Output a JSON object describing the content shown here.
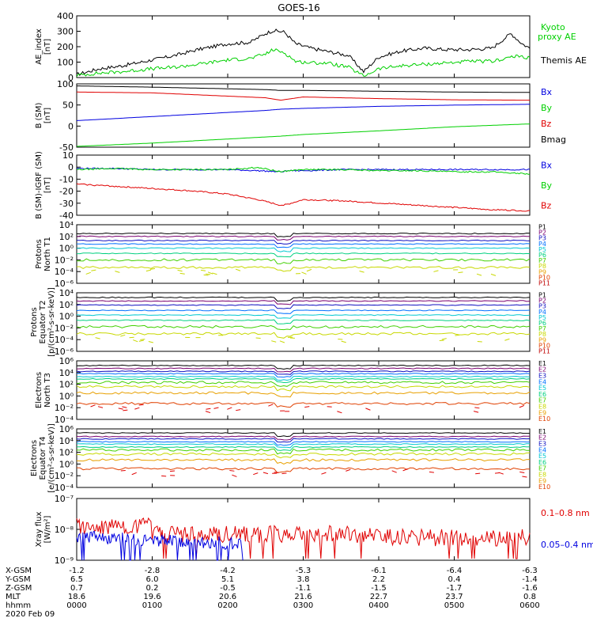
{
  "title": "GOES-16",
  "colors": {
    "black": "#000000",
    "red": "#e00000",
    "green": "#00e000",
    "blue": "#0000e0",
    "ae_green": "#00d000",
    "flux": [
      "#000000",
      "#7a0070",
      "#1010c0",
      "#0070ff",
      "#00c8d0",
      "#00d080",
      "#40d000",
      "#c8d800",
      "#e8a000",
      "#e04000",
      "#c00000"
    ]
  },
  "panels": [
    {
      "id": "ae",
      "ylabel": [
        "AE_index",
        "[nT]"
      ],
      "ticks": [
        "400",
        "300",
        "200",
        "100",
        "0"
      ],
      "legend": [
        {
          "text": "Kyoto",
          "color": "#00d000"
        },
        {
          "text": "proxy AE",
          "color": "#00d000"
        },
        {
          "text": "Themis AE",
          "color": "#000000"
        }
      ]
    },
    {
      "id": "bsm",
      "ylabel": [
        "B (SM)",
        "[nT]"
      ],
      "ticks": [
        "100",
        "50",
        "0",
        "-50"
      ],
      "legend": [
        {
          "text": "Bx",
          "color": "#0000e0"
        },
        {
          "text": "By",
          "color": "#00d000"
        },
        {
          "text": "Bz",
          "color": "#e00000"
        },
        {
          "text": "Bmag",
          "color": "#000000"
        }
      ]
    },
    {
      "id": "bigrf",
      "ylabel": [
        "B (SM)-IGRF (SM)",
        "[nT]"
      ],
      "ticks": [
        "10",
        "0",
        "-10",
        "-20",
        "-30",
        "-40"
      ],
      "legend": [
        {
          "text": "Bx",
          "color": "#0000e0"
        },
        {
          "text": "By",
          "color": "#00d000"
        },
        {
          "text": "Bz",
          "color": "#e00000"
        }
      ]
    },
    {
      "id": "pnt1",
      "ylabel": [
        "Protons",
        "North T1"
      ],
      "ticks": [
        "10⁴",
        "10²",
        "10⁰",
        "10⁻²",
        "10⁻⁴",
        "10⁻⁶"
      ],
      "legend": [
        {
          "text": "P1"
        },
        {
          "text": "P2"
        },
        {
          "text": "P3"
        },
        {
          "text": "P4"
        },
        {
          "text": "P5"
        },
        {
          "text": "P6"
        },
        {
          "text": "P7"
        },
        {
          "text": "P8"
        },
        {
          "text": "P9"
        },
        {
          "text": "P10"
        },
        {
          "text": "P11"
        }
      ]
    },
    {
      "id": "pet2",
      "ylabel": [
        "Protons",
        "Equator T2",
        "[p/(cm²-s-sr-keV)]"
      ],
      "ticks": [
        "10⁴",
        "10²",
        "10⁰",
        "10⁻²",
        "10⁻⁴",
        "10⁻⁶"
      ],
      "legend": [
        {
          "text": "P1"
        },
        {
          "text": "P2"
        },
        {
          "text": "P3"
        },
        {
          "text": "P4"
        },
        {
          "text": "P5"
        },
        {
          "text": "P6"
        },
        {
          "text": "P7"
        },
        {
          "text": "P8"
        },
        {
          "text": "P9"
        },
        {
          "text": "P10"
        },
        {
          "text": "P11"
        }
      ]
    },
    {
      "id": "ent3",
      "ylabel": [
        "Electrons",
        "North T3"
      ],
      "ticks": [
        "10⁶",
        "10⁴",
        "10²",
        "10⁰",
        "10⁻²",
        "10⁻⁴"
      ],
      "legend": [
        {
          "text": "E1"
        },
        {
          "text": "E2"
        },
        {
          "text": "E3"
        },
        {
          "text": "E4"
        },
        {
          "text": "E5"
        },
        {
          "text": "E6"
        },
        {
          "text": "E7"
        },
        {
          "text": "E8"
        },
        {
          "text": "E9"
        },
        {
          "text": "E10"
        }
      ]
    },
    {
      "id": "eet4",
      "ylabel": [
        "Electrons",
        "Equator T4",
        "[e/(cm²-s-sr-keV)]"
      ],
      "ticks": [
        "10⁶",
        "10⁴",
        "10²",
        "10⁰",
        "10⁻²",
        "10⁻⁴"
      ],
      "legend": [
        {
          "text": "E1"
        },
        {
          "text": "E2"
        },
        {
          "text": "E3"
        },
        {
          "text": "E4"
        },
        {
          "text": "E5"
        },
        {
          "text": "E6"
        },
        {
          "text": "E7"
        },
        {
          "text": "E8"
        },
        {
          "text": "E9"
        },
        {
          "text": "E10"
        }
      ]
    },
    {
      "id": "xray",
      "ylabel": [
        "Xray flux",
        "[W/m²]"
      ],
      "ticks": [
        "10⁻⁷",
        "10⁻⁸",
        "10⁻⁹"
      ],
      "legend": [
        {
          "text": "0.1–0.8 nm",
          "color": "#e00000"
        },
        {
          "text": "0.05–0.4 nm",
          "color": "#0000e0"
        }
      ]
    }
  ],
  "footer": {
    "rows": [
      {
        "label": "X-GSM",
        "values": [
          "-1.2",
          "-2.8",
          "-4.2",
          "-5.3",
          "-6.1",
          "-6.4",
          "-6.3"
        ]
      },
      {
        "label": "Y-GSM",
        "values": [
          "6.5",
          "6.0",
          "5.1",
          "3.8",
          "2.2",
          "0.4",
          "-1.4"
        ]
      },
      {
        "label": "Z-GSM",
        "values": [
          "0.7",
          "0.2",
          "-0.5",
          "-1.1",
          "-1.5",
          "-1.7",
          "-1.6"
        ]
      },
      {
        "label": "MLT",
        "values": [
          "18.6",
          "19.6",
          "20.6",
          "21.6",
          "22.7",
          "23.7",
          "0.8"
        ]
      },
      {
        "label": "hhmm",
        "values": [
          "0000",
          "0100",
          "0200",
          "0300",
          "0400",
          "0500",
          "0600"
        ]
      }
    ],
    "date": "2020 Feb 09"
  },
  "chart_data": [
    {
      "type": "line",
      "panel": "ae",
      "ylim": [
        0,
        420
      ],
      "x_hours": [
        0,
        0.3,
        0.6,
        1.0,
        1.3,
        1.6,
        2.0,
        2.3,
        2.5,
        2.6,
        2.75,
        2.9,
        3.1,
        3.3,
        3.6,
        3.8,
        4.0,
        4.3,
        4.6,
        4.9,
        5.2,
        5.5,
        5.75,
        5.9,
        6.0
      ],
      "series": [
        {
          "name": "Themis AE",
          "values": [
            20,
            60,
            80,
            120,
            150,
            190,
            230,
            240,
            300,
            320,
            310,
            230,
            200,
            180,
            150,
            40,
            140,
            180,
            200,
            190,
            190,
            200,
            300,
            230,
            200
          ]
        },
        {
          "name": "Kyoto proxy AE",
          "values": [
            15,
            30,
            40,
            60,
            70,
            90,
            120,
            130,
            160,
            190,
            170,
            110,
            100,
            100,
            70,
            10,
            60,
            80,
            90,
            100,
            110,
            110,
            140,
            145,
            130
          ]
        }
      ]
    },
    {
      "type": "line",
      "panel": "bsm",
      "ylim": [
        -55,
        100
      ],
      "x_hours": [
        0,
        1,
        2,
        2.5,
        2.7,
        3,
        4,
        5,
        6
      ],
      "series": [
        {
          "name": "Bmag",
          "values": [
            95,
            92,
            88,
            86,
            84,
            84,
            82,
            80,
            79
          ]
        },
        {
          "name": "Bz",
          "values": [
            80,
            78,
            70,
            66,
            60,
            68,
            64,
            61,
            60
          ]
        },
        {
          "name": "Bx",
          "values": [
            10,
            20,
            30,
            35,
            38,
            40,
            45,
            48,
            50
          ]
        },
        {
          "name": "By",
          "values": [
            -53,
            -45,
            -35,
            -30,
            -28,
            -24,
            -15,
            -5,
            2
          ]
        }
      ]
    },
    {
      "type": "line",
      "panel": "bigrf",
      "ylim": [
        -42,
        12
      ],
      "x_hours": [
        0,
        0.5,
        1,
        1.5,
        2,
        2.4,
        2.7,
        2.8,
        3,
        3.5,
        4,
        4.5,
        5,
        5.5,
        6
      ],
      "series": [
        {
          "name": "Bx",
          "values": [
            0,
            0,
            -1,
            -1,
            -1,
            -2,
            -3,
            -2,
            -2,
            -1,
            -1,
            -1,
            -1,
            -1,
            -1
          ]
        },
        {
          "name": "By",
          "values": [
            -1,
            0,
            -1,
            -1,
            -1,
            1,
            -3,
            -2,
            -1,
            -1,
            -2,
            -2,
            -3,
            -3,
            -5
          ]
        },
        {
          "name": "Bz",
          "values": [
            -14,
            -16,
            -18,
            -20,
            -23,
            -28,
            -33,
            -32,
            -28,
            -29,
            -31,
            -33,
            -35,
            -37,
            -38
          ]
        }
      ]
    }
  ]
}
